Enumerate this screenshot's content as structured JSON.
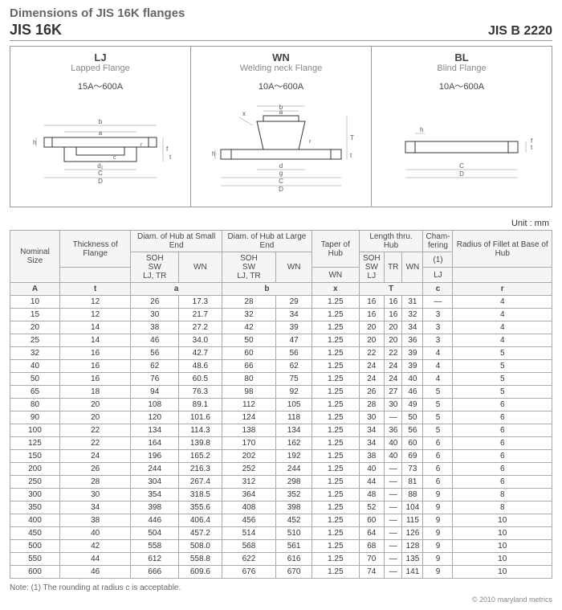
{
  "header": {
    "title": "Dimensions of JIS 16K flanges",
    "left": "JIS 16K",
    "right": "JIS B 2220"
  },
  "diagrams": [
    {
      "code": "LJ",
      "name": "Lapped Flange",
      "range": "15A～600A"
    },
    {
      "code": "WN",
      "name": "Welding neck Flange",
      "range": "10A～600A"
    },
    {
      "code": "BL",
      "name": "Blind Flange",
      "range": "10A～600A"
    }
  ],
  "unit": "Unit : mm",
  "table": {
    "group_headers": [
      {
        "label": "Nominal Size",
        "rowspan": 3
      },
      {
        "label": "Thickness of Flange",
        "rowspan": 2
      },
      {
        "label": "Diam. of Hub at Small End",
        "colspan": 2
      },
      {
        "label": "Diam. of Hub at Large End",
        "colspan": 2
      },
      {
        "label": "Taper of Hub",
        "rowspan": 2
      },
      {
        "label": "Length thru. Hub",
        "colspan": 3
      },
      {
        "label": "Cham-fering",
        "rowspan": 2
      },
      {
        "label": "Radius of Fillet at Base of Hub",
        "rowspan": 2
      }
    ],
    "sub_headers_row2": [
      "SOH SW LJ, TR",
      "WN",
      "SOH SW LJ, TR",
      "WN",
      "SOH SW LJ",
      "TR",
      "WN",
      "(1)"
    ],
    "sub_headers_row3": [
      "",
      "",
      "",
      "",
      "WN",
      "",
      "",
      "",
      "LJ",
      ""
    ],
    "letter_row": [
      "A",
      "t",
      "a",
      "b",
      "x",
      "T",
      "c",
      "r"
    ],
    "letter_spans": [
      1,
      1,
      2,
      2,
      1,
      3,
      1,
      1
    ],
    "rows": [
      [
        "10",
        "12",
        "26",
        "17.3",
        "28",
        "29",
        "1.25",
        "16",
        "16",
        "31",
        "—",
        "4"
      ],
      [
        "15",
        "12",
        "30",
        "21.7",
        "32",
        "34",
        "1.25",
        "16",
        "16",
        "32",
        "3",
        "4"
      ],
      [
        "20",
        "14",
        "38",
        "27.2",
        "42",
        "39",
        "1.25",
        "20",
        "20",
        "34",
        "3",
        "4"
      ],
      [
        "25",
        "14",
        "46",
        "34.0",
        "50",
        "47",
        "1.25",
        "20",
        "20",
        "36",
        "3",
        "4"
      ],
      [
        "32",
        "16",
        "56",
        "42.7",
        "60",
        "56",
        "1.25",
        "22",
        "22",
        "39",
        "4",
        "5"
      ],
      [
        "40",
        "16",
        "62",
        "48.6",
        "66",
        "62",
        "1.25",
        "24",
        "24",
        "39",
        "4",
        "5"
      ],
      [
        "50",
        "16",
        "76",
        "60.5",
        "80",
        "75",
        "1.25",
        "24",
        "24",
        "40",
        "4",
        "5"
      ],
      [
        "65",
        "18",
        "94",
        "76.3",
        "98",
        "92",
        "1.25",
        "26",
        "27",
        "46",
        "5",
        "5"
      ],
      [
        "80",
        "20",
        "108",
        "89.1",
        "112",
        "105",
        "1.25",
        "28",
        "30",
        "49",
        "5",
        "6"
      ],
      [
        "90",
        "20",
        "120",
        "101.6",
        "124",
        "118",
        "1.25",
        "30",
        "—",
        "50",
        "5",
        "6"
      ],
      [
        "100",
        "22",
        "134",
        "114.3",
        "138",
        "134",
        "1.25",
        "34",
        "36",
        "56",
        "5",
        "6"
      ],
      [
        "125",
        "22",
        "164",
        "139.8",
        "170",
        "162",
        "1.25",
        "34",
        "40",
        "60",
        "6",
        "6"
      ],
      [
        "150",
        "24",
        "196",
        "165.2",
        "202",
        "192",
        "1.25",
        "38",
        "40",
        "69",
        "6",
        "6"
      ],
      [
        "200",
        "26",
        "244",
        "216.3",
        "252",
        "244",
        "1.25",
        "40",
        "—",
        "73",
        "6",
        "6"
      ],
      [
        "250",
        "28",
        "304",
        "267.4",
        "312",
        "298",
        "1.25",
        "44",
        "—",
        "81",
        "6",
        "6"
      ],
      [
        "300",
        "30",
        "354",
        "318.5",
        "364",
        "352",
        "1.25",
        "48",
        "—",
        "88",
        "9",
        "8"
      ],
      [
        "350",
        "34",
        "398",
        "355.6",
        "408",
        "398",
        "1.25",
        "52",
        "—",
        "104",
        "9",
        "8"
      ],
      [
        "400",
        "38",
        "446",
        "406.4",
        "456",
        "452",
        "1.25",
        "60",
        "—",
        "115",
        "9",
        "10"
      ],
      [
        "450",
        "40",
        "504",
        "457.2",
        "514",
        "510",
        "1.25",
        "64",
        "—",
        "126",
        "9",
        "10"
      ],
      [
        "500",
        "42",
        "558",
        "508.0",
        "568",
        "561",
        "1.25",
        "68",
        "—",
        "128",
        "9",
        "10"
      ],
      [
        "550",
        "44",
        "612",
        "558.8",
        "622",
        "616",
        "1.25",
        "70",
        "—",
        "135",
        "9",
        "10"
      ],
      [
        "600",
        "46",
        "666",
        "609.6",
        "676",
        "670",
        "1.25",
        "74",
        "—",
        "141",
        "9",
        "10"
      ]
    ]
  },
  "note": "Note: (1) The rounding at radius c is acceptable.",
  "copyright": "© 2010 maryland metrics",
  "diagram_style": {
    "stroke": "#333333",
    "stroke_width": 1,
    "thin_stroke": "#888888"
  }
}
